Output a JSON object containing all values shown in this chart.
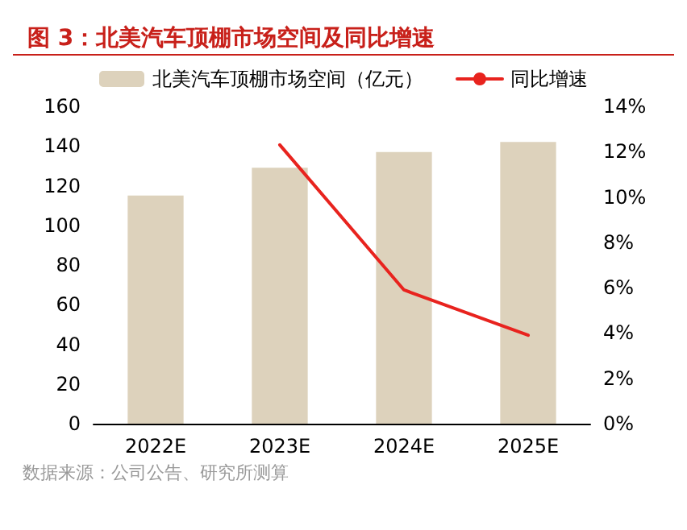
{
  "chart_data": {
    "type": "bar",
    "title": "图 3：北美汽车顶棚市场空间及同比增速",
    "categories": [
      "2022E",
      "2023E",
      "2024E",
      "2025E"
    ],
    "series": [
      {
        "name": "北美汽车顶棚市场空间（亿元）",
        "color": "#ddd2bc",
        "values": [
          115,
          129,
          137,
          142
        ]
      },
      {
        "name": "同比增速",
        "type": "line",
        "axis": "y2",
        "color": "#e8231e",
        "values": [
          null,
          12.3,
          5.9,
          3.9
        ]
      }
    ],
    "ylim": [
      0,
      160
    ],
    "yticks": [
      0,
      20,
      40,
      60,
      80,
      100,
      120,
      140,
      160
    ],
    "y2lim": [
      0,
      14
    ],
    "y2ticks": [
      {
        "value": 0,
        "label": "0%"
      },
      {
        "value": 2,
        "label": "2%"
      },
      {
        "value": 4,
        "label": "4%"
      },
      {
        "value": 6,
        "label": "6%"
      },
      {
        "value": 8,
        "label": "8%"
      },
      {
        "value": 10,
        "label": "10%"
      },
      {
        "value": 12,
        "label": "12%"
      },
      {
        "value": 14,
        "label": "14%"
      }
    ],
    "legend": "top",
    "grid": false,
    "marker": "none",
    "annotations": [
      "数据来源：公司公告、研究所测算"
    ]
  }
}
